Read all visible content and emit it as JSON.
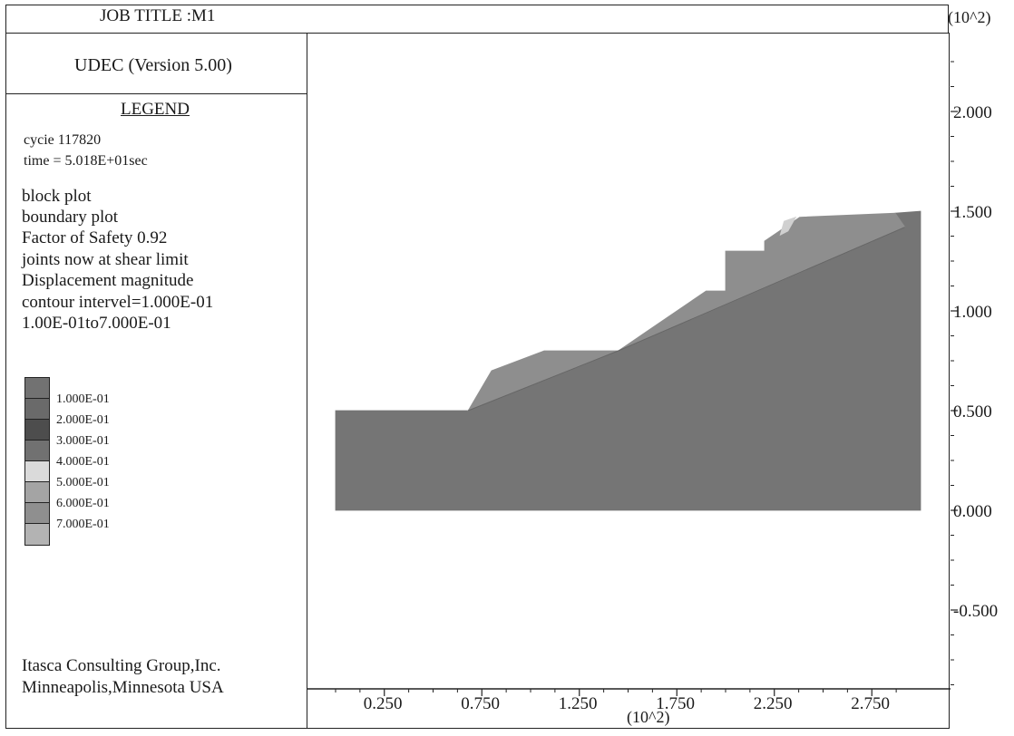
{
  "header": {
    "job_title": "JOB TITLE :M1",
    "y_multiplier": "(10^2)"
  },
  "left_panel": {
    "version": "UDEC (Version 5.00)",
    "legend_title": "LEGEND",
    "cycle_text": "cycie  117820",
    "time_text": "time = 5.018E+01sec",
    "info_lines": [
      "block plot",
      "boundary plot",
      "Factor of Safety 0.92",
      "joints now at shear limit",
      "Displacement magnitude",
      "contour intervel=1.000E-01",
      "1.00E-01to7.000E-01"
    ],
    "contour_scale": [
      {
        "color": "#727272",
        "label": "1.000E-01"
      },
      {
        "color": "#6a6a6a",
        "label": "2.000E-01"
      },
      {
        "color": "#4d4d4d",
        "label": "3.000E-01"
      },
      {
        "color": "#717171",
        "label": "4.000E-01"
      },
      {
        "color": "#dadada",
        "label": "5.000E-01"
      },
      {
        "color": "#a4a4a4",
        "label": "6.000E-01"
      },
      {
        "color": "#8f8f8f",
        "label": "7.000E-01"
      },
      {
        "color": "#b3b3b3",
        "label": ""
      }
    ],
    "company_line1": "Itasca Consulting Group,Inc.",
    "company_line2": "Minneapolis,Minnesota USA"
  },
  "chart_data": {
    "type": "area",
    "xlabel": "(10^2)",
    "ylabel": "(10^2)",
    "xlim": [
      -0.05,
      3.05
    ],
    "ylim": [
      -0.9,
      2.45
    ],
    "x_ticks": [
      0.25,
      0.75,
      1.25,
      1.75,
      2.25,
      2.75
    ],
    "x_tick_labels": [
      "0.250",
      "0.750",
      "1.250",
      "1.750",
      "2.250",
      "2.750"
    ],
    "y_ticks": [
      -0.5,
      0.0,
      0.5,
      1.0,
      1.5,
      2.0
    ],
    "y_tick_labels": [
      "-0.500",
      "0.000",
      "0.500",
      "1.000",
      "1.500",
      "2.000"
    ],
    "series": [
      {
        "polygon": [
          [
            0.0,
            0.0
          ],
          [
            3.0,
            0.0
          ],
          [
            3.0,
            1.5
          ],
          [
            2.87,
            1.49
          ],
          [
            1.45,
            0.8
          ],
          [
            0.68,
            0.5
          ],
          [
            0.0,
            0.5
          ]
        ],
        "color": "#757575"
      },
      {
        "polygon": [
          [
            0.68,
            0.5
          ],
          [
            0.8,
            0.7
          ],
          [
            1.07,
            0.8
          ],
          [
            1.45,
            0.8
          ],
          [
            1.6,
            0.9
          ],
          [
            1.9,
            1.1
          ],
          [
            2.0,
            1.1
          ],
          [
            2.0,
            1.3
          ],
          [
            2.2,
            1.3
          ],
          [
            2.2,
            1.35
          ],
          [
            2.38,
            1.47
          ],
          [
            2.87,
            1.49
          ],
          [
            2.92,
            1.42
          ],
          [
            1.45,
            0.8
          ]
        ],
        "color": "#8e8e8e"
      },
      {
        "polygon": [
          [
            2.28,
            1.38
          ],
          [
            2.3,
            1.45
          ],
          [
            2.36,
            1.47
          ],
          [
            2.32,
            1.4
          ]
        ],
        "color": "#d0d0d0"
      }
    ]
  }
}
